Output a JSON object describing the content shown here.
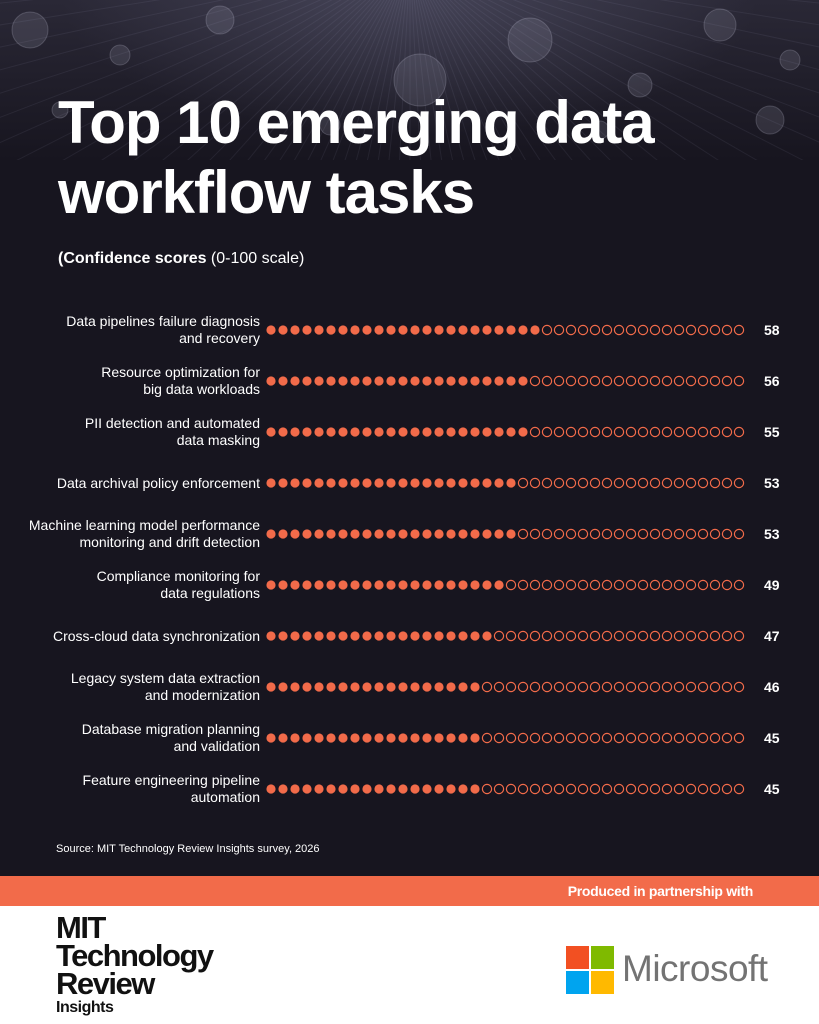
{
  "title": "Top 10 emerging data workflow tasks",
  "subtitle_bold": "(Confidence scores",
  "subtitle_rest": " (0-100 scale)",
  "source": "Source: MIT Technology Review Insights survey, 2026",
  "banner_text": "Produced in partnership with",
  "mit_logo": {
    "line1": "MIT",
    "line2": "Technology",
    "line3": "Review",
    "line4": "Insights"
  },
  "partner_name": "Microsoft",
  "colors": {
    "background": "#17151f",
    "accent": "#f26b4a",
    "ms_red": "#f25022",
    "ms_green": "#7fba00",
    "ms_blue": "#00a4ef",
    "ms_yellow": "#ffb900"
  },
  "chart_data": {
    "type": "bar",
    "style": "dot-bar",
    "title": "Top 10 emerging data workflow tasks",
    "subtitle": "(Confidence scores (0-100 scale)",
    "scale": [
      0,
      100
    ],
    "dot_count": 40,
    "categories": [
      "Data pipelines failure diagnosis and recovery",
      "Resource optimization for big data workloads",
      "PII detection and automated data masking",
      "Data archival policy enforcement",
      "Machine learning model performance monitoring and drift detection",
      "Compliance monitoring for data regulations",
      "Cross-cloud data synchronization",
      "Legacy system data extraction and modernization",
      "Database migration planning and validation",
      "Feature engineering pipeline automation"
    ],
    "label_lines": [
      [
        "Data pipelines failure diagnosis",
        "and recovery"
      ],
      [
        "Resource optimization for",
        "big data workloads"
      ],
      [
        "PII detection and automated",
        "data masking"
      ],
      [
        "Data archival policy enforcement"
      ],
      [
        "Machine learning model performance",
        "monitoring and drift detection"
      ],
      [
        "Compliance monitoring for",
        "data regulations"
      ],
      [
        "Cross-cloud data synchronization"
      ],
      [
        "Legacy system data extraction",
        "and modernization"
      ],
      [
        "Database migration planning",
        "and validation"
      ],
      [
        "Feature engineering pipeline",
        "automation"
      ]
    ],
    "values": [
      58,
      56,
      55,
      53,
      53,
      49,
      47,
      46,
      45,
      45
    ]
  }
}
